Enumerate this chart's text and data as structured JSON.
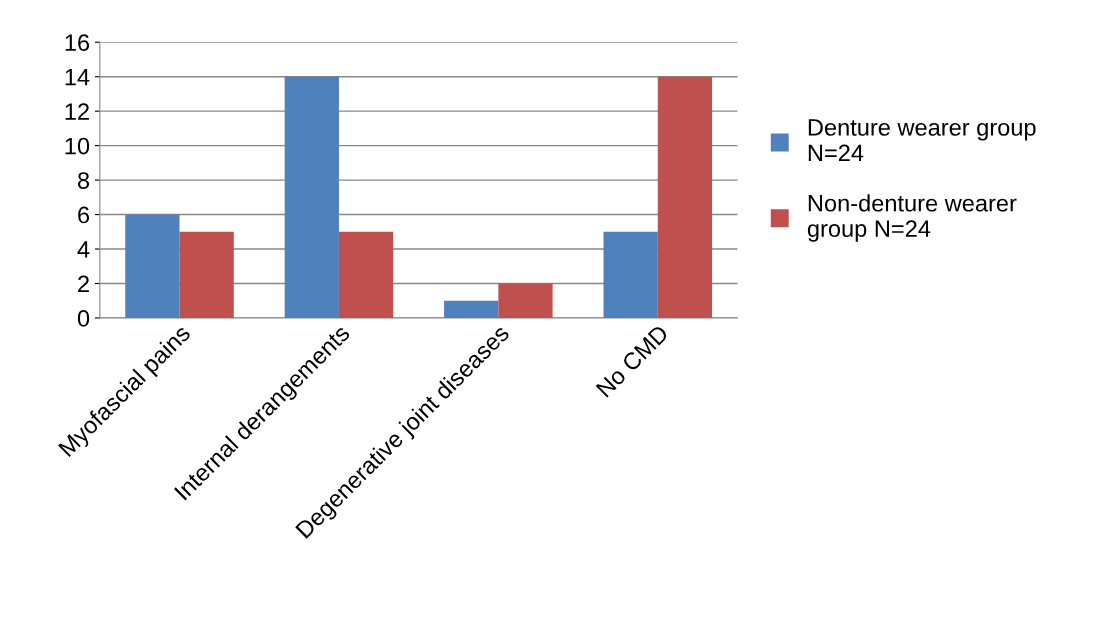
{
  "chart_data": {
    "type": "bar",
    "categories": [
      "Myofascial pains",
      "Internal derangements",
      "Degenerative joint diseases",
      "No CMD"
    ],
    "series": [
      {
        "name": "Denture wearer group\nN=24",
        "color": "#4f81bd",
        "values": [
          6,
          14,
          1,
          5
        ]
      },
      {
        "name": "Non-denture wearer\ngroup N=24",
        "color": "#c0504d",
        "values": [
          5,
          5,
          2,
          14
        ]
      }
    ],
    "ylim": [
      0,
      16
    ],
    "yticks": [
      0,
      2,
      4,
      6,
      8,
      10,
      12,
      14,
      16
    ],
    "grid": "y",
    "legend": "right"
  }
}
